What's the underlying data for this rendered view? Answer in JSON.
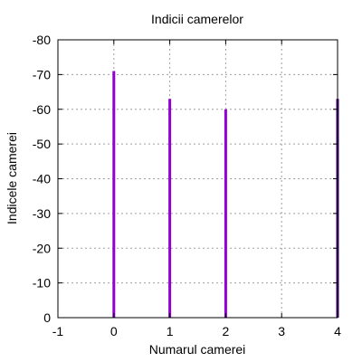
{
  "chart_data": {
    "type": "bar",
    "title": "Indicii camerelor",
    "xlabel": "Numarul camerei",
    "ylabel": "Indicele camerei",
    "xlim": [
      -1,
      4
    ],
    "ylim": [
      0,
      -80
    ],
    "y_axis_inverted": true,
    "x_ticks": [
      -1,
      0,
      1,
      2,
      3,
      4
    ],
    "x_tick_labels": [
      "-1",
      "0",
      "1",
      "2",
      "3",
      "4"
    ],
    "y_ticks": [
      0,
      -10,
      -20,
      -30,
      -40,
      -50,
      -60,
      -70,
      -80
    ],
    "y_tick_labels": [
      "0",
      "-10",
      "-20",
      "-30",
      "-40",
      "-50",
      "-60",
      "-70",
      "-80"
    ],
    "grid": true,
    "legend": "none",
    "x": [
      0,
      1,
      2,
      4
    ],
    "values": [
      -71,
      -63,
      -60,
      -63
    ],
    "colors": [
      "#9400d3",
      "#9400d3",
      "#9400d3",
      "#4b0082"
    ],
    "grid_color": "#a0a0a0"
  }
}
